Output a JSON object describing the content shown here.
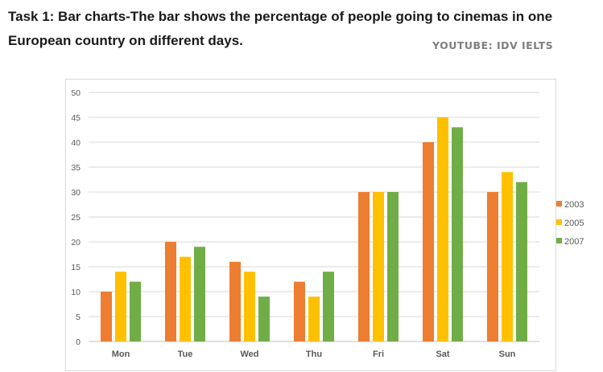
{
  "header": {
    "title": "Task 1: Bar charts-The bar shows the percentage of people going to cinemas in one European country on different days.",
    "watermark": "YOUTUBE: IDV IELTS"
  },
  "chart_data": {
    "type": "bar",
    "categories": [
      "Mon",
      "Tue",
      "Wed",
      "Thu",
      "Fri",
      "Sat",
      "Sun"
    ],
    "series": [
      {
        "name": "2003",
        "color": "#ed7d31",
        "values": [
          10,
          20,
          16,
          12,
          30,
          40,
          30
        ]
      },
      {
        "name": "2005",
        "color": "#ffc000",
        "values": [
          14,
          17,
          14,
          9,
          30,
          45,
          34
        ]
      },
      {
        "name": "2007",
        "color": "#70ad47",
        "values": [
          12,
          19,
          9,
          14,
          30,
          43,
          32
        ]
      }
    ],
    "yticks": [
      0,
      5,
      10,
      15,
      20,
      25,
      30,
      35,
      40,
      45,
      50
    ],
    "ylim": [
      0,
      50
    ],
    "grid": true,
    "legend": "right"
  }
}
